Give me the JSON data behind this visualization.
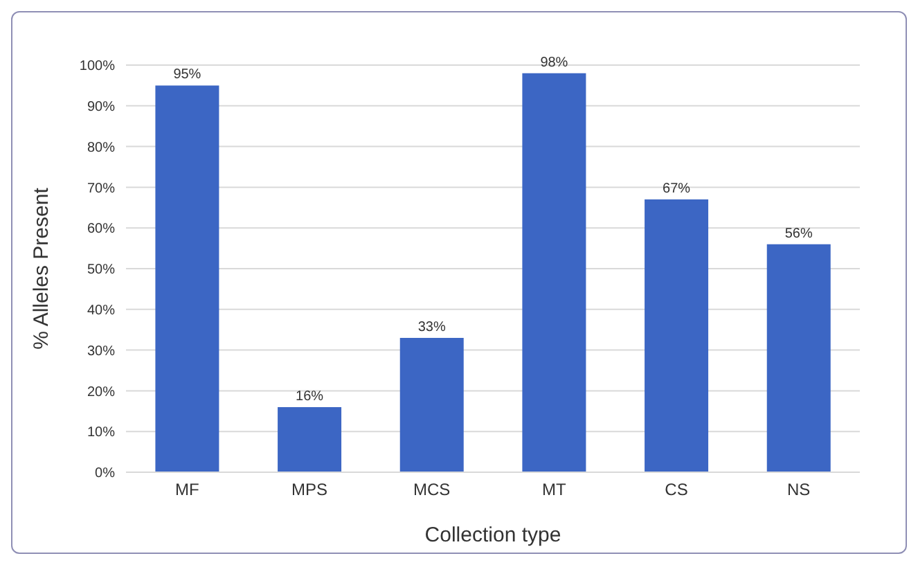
{
  "chart_data": {
    "type": "bar",
    "xlabel": "Collection type",
    "ylabel": "% Alleles Present",
    "categories": [
      "MF",
      "MPS",
      "MCS",
      "MT",
      "CS",
      "NS"
    ],
    "values": [
      95,
      16,
      33,
      98,
      67,
      56
    ],
    "value_labels": [
      "95%",
      "16%",
      "33%",
      "98%",
      "67%",
      "56%"
    ],
    "color": "#3c66c4",
    "ylim": [
      0,
      100
    ],
    "yticks": [
      {
        "value": 0,
        "label": "0%"
      },
      {
        "value": 10,
        "label": "10%"
      },
      {
        "value": 20,
        "label": "20%"
      },
      {
        "value": 30,
        "label": "30%"
      },
      {
        "value": 40,
        "label": "40%"
      },
      {
        "value": 50,
        "label": "50%"
      },
      {
        "value": 60,
        "label": "60%"
      },
      {
        "value": 70,
        "label": "70%"
      },
      {
        "value": 80,
        "label": "80%"
      },
      {
        "value": 90,
        "label": "90%"
      },
      {
        "value": 100,
        "label": "100%"
      }
    ],
    "grid": "y"
  }
}
